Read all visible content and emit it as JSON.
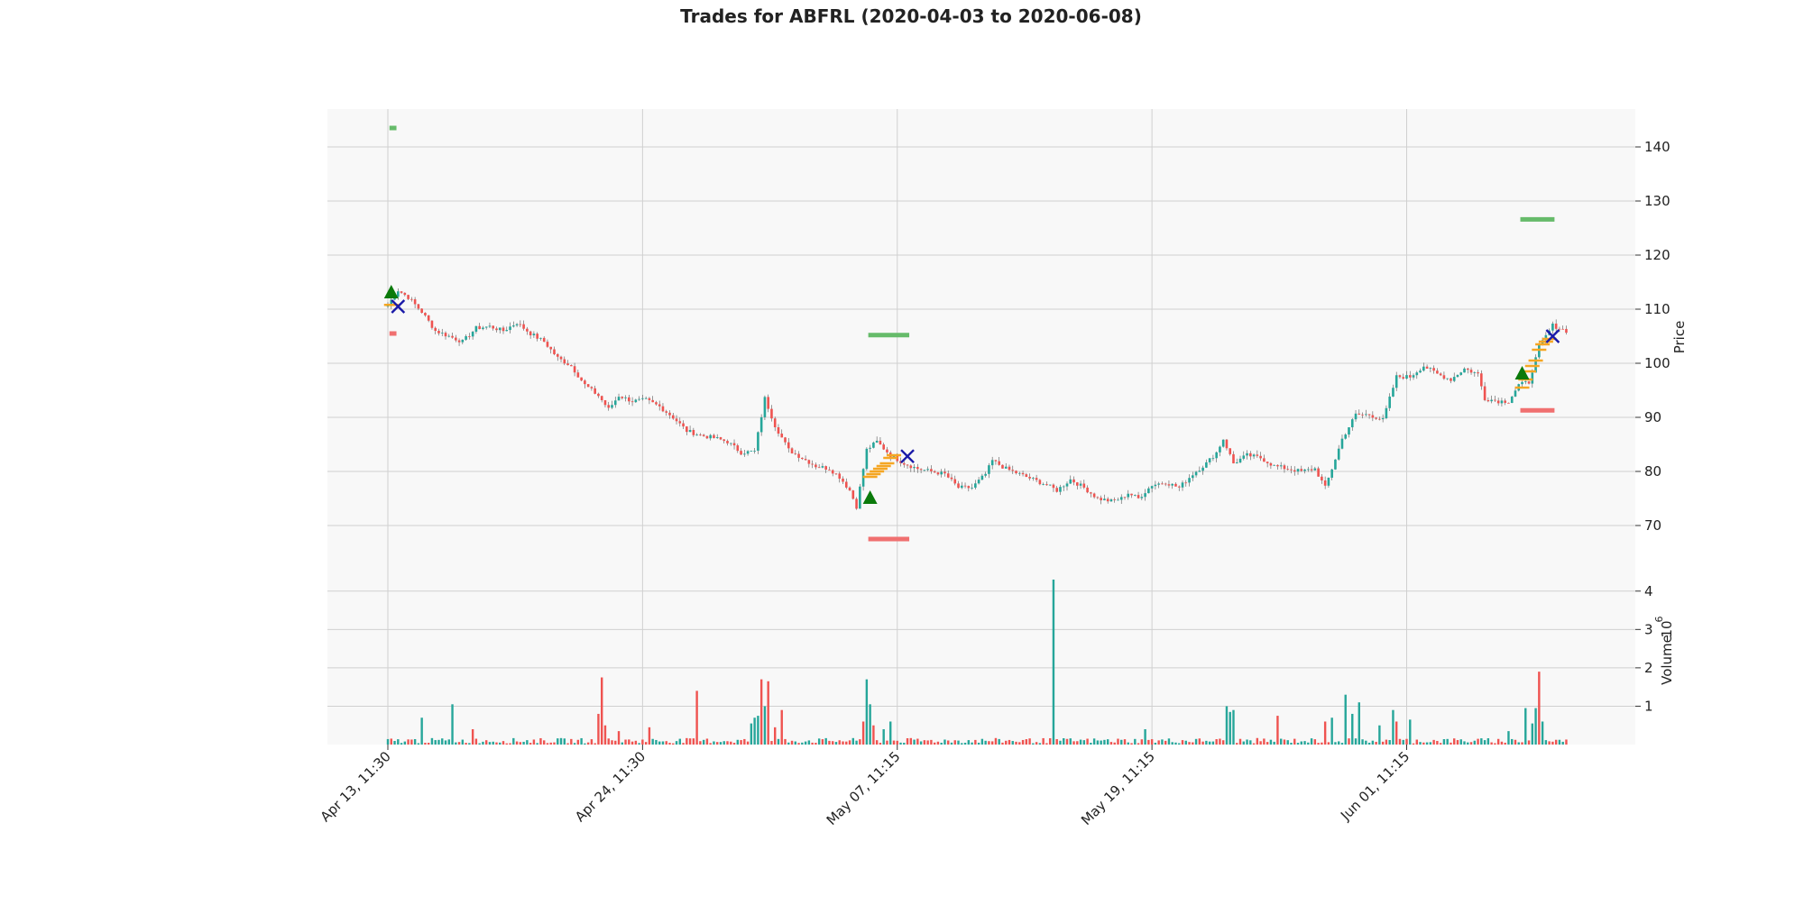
{
  "chart_data": {
    "type": "candlestick",
    "title": "Trades for ABFRL (2020-04-03 to 2020-06-08)",
    "price_panel": {
      "ylabel": "Price",
      "ylim": [
        63,
        147
      ],
      "yticks": [
        70,
        80,
        90,
        100,
        110,
        120,
        130,
        140
      ],
      "close_path": [
        [
          0,
          110.8
        ],
        [
          3,
          113.5
        ],
        [
          6,
          112.2
        ],
        [
          10,
          109.5
        ],
        [
          14,
          106.0
        ],
        [
          18,
          105.0
        ],
        [
          22,
          104.0
        ],
        [
          26,
          106.5
        ],
        [
          30,
          106.8
        ],
        [
          34,
          106.0
        ],
        [
          38,
          107.5
        ],
        [
          42,
          105.5
        ],
        [
          46,
          104.0
        ],
        [
          50,
          101.0
        ],
        [
          54,
          99.5
        ],
        [
          58,
          96.0
        ],
        [
          62,
          94.0
        ],
        [
          65,
          91.5
        ],
        [
          68,
          94.0
        ],
        [
          72,
          93.0
        ],
        [
          76,
          93.2
        ],
        [
          80,
          92.0
        ],
        [
          84,
          90.0
        ],
        [
          88,
          87.5
        ],
        [
          92,
          86.7
        ],
        [
          96,
          86.2
        ],
        [
          100,
          85.5
        ],
        [
          104,
          83.5
        ],
        [
          108,
          83.7
        ],
        [
          111,
          93.5
        ],
        [
          114,
          88.5
        ],
        [
          118,
          84.0
        ],
        [
          122,
          82.5
        ],
        [
          126,
          81.0
        ],
        [
          130,
          80.5
        ],
        [
          133,
          79.0
        ],
        [
          136,
          76.5
        ],
        [
          138,
          73.5
        ],
        [
          141,
          84.0
        ],
        [
          144,
          85.5
        ],
        [
          148,
          83.0
        ],
        [
          152,
          81.5
        ],
        [
          156,
          80.5
        ],
        [
          160,
          80.0
        ],
        [
          164,
          79.5
        ],
        [
          168,
          77.0
        ],
        [
          172,
          77.0
        ],
        [
          176,
          79.5
        ],
        [
          178,
          82.0
        ],
        [
          182,
          80.5
        ],
        [
          186,
          79.5
        ],
        [
          190,
          78.5
        ],
        [
          194,
          77.5
        ],
        [
          197,
          76.5
        ],
        [
          201,
          78.5
        ],
        [
          205,
          77.0
        ],
        [
          209,
          75.0
        ],
        [
          213,
          74.5
        ],
        [
          216,
          75.0
        ],
        [
          218,
          76.0
        ],
        [
          221,
          75.0
        ],
        [
          225,
          77.5
        ],
        [
          229,
          78.0
        ],
        [
          233,
          77.0
        ],
        [
          237,
          79.5
        ],
        [
          241,
          81.5
        ],
        [
          244,
          83.5
        ],
        [
          246,
          86.0
        ],
        [
          249,
          81.5
        ],
        [
          253,
          83.0
        ],
        [
          257,
          82.5
        ],
        [
          261,
          81.0
        ],
        [
          265,
          80.5
        ],
        [
          269,
          80.0
        ],
        [
          273,
          80.5
        ],
        [
          276,
          77.0
        ],
        [
          278,
          80.5
        ],
        [
          281,
          86.0
        ],
        [
          285,
          90.5
        ],
        [
          289,
          90.5
        ],
        [
          293,
          89.5
        ],
        [
          295,
          93.5
        ],
        [
          297,
          97.5
        ],
        [
          301,
          97.5
        ],
        [
          305,
          99.5
        ],
        [
          309,
          98.0
        ],
        [
          313,
          97.0
        ],
        [
          317,
          99.0
        ],
        [
          321,
          98.0
        ],
        [
          323,
          93.5
        ],
        [
          327,
          93.0
        ],
        [
          330,
          93.0
        ],
        [
          333,
          96.0
        ],
        [
          336,
          96.5
        ],
        [
          339,
          103.0
        ],
        [
          343,
          107.0
        ],
        [
          347,
          106.0
        ]
      ],
      "trade_markers": [
        {
          "kind": "buy",
          "x": 1,
          "y": 113.0
        },
        {
          "kind": "exit",
          "x": 3,
          "y": 110.5
        },
        {
          "kind": "buy",
          "x": 142,
          "y": 75.0
        },
        {
          "kind": "exit",
          "x": 153,
          "y": 82.8
        },
        {
          "kind": "buy",
          "x": 334,
          "y": 98.0
        },
        {
          "kind": "exit",
          "x": 343,
          "y": 105.0
        }
      ],
      "levels": [
        {
          "kind": "target",
          "x0": 1,
          "x1": 2,
          "y": 143.5
        },
        {
          "kind": "stop",
          "x0": 1,
          "x1": 2,
          "y": 105.5
        },
        {
          "kind": "target",
          "x0": 142,
          "x1": 153,
          "y": 105.2
        },
        {
          "kind": "stop",
          "x0": 142,
          "x1": 153,
          "y": 67.5
        },
        {
          "kind": "target",
          "x0": 334,
          "x1": 343,
          "y": 126.6
        },
        {
          "kind": "stop",
          "x0": 334,
          "x1": 343,
          "y": 91.3
        }
      ],
      "entry_orders": [
        {
          "x": 1,
          "y": 110.8
        },
        {
          "x": 142,
          "y": 79.0
        },
        {
          "x": 143,
          "y": 79.5
        },
        {
          "x": 144,
          "y": 80.0
        },
        {
          "x": 145,
          "y": 80.5
        },
        {
          "x": 146,
          "y": 81.0
        },
        {
          "x": 147,
          "y": 81.5
        },
        {
          "x": 148,
          "y": 82.5
        },
        {
          "x": 149,
          "y": 83.0
        },
        {
          "x": 334,
          "y": 95.5
        },
        {
          "x": 335,
          "y": 97.0
        },
        {
          "x": 336,
          "y": 98.5
        },
        {
          "x": 337,
          "y": 99.5
        },
        {
          "x": 338,
          "y": 100.5
        },
        {
          "x": 339,
          "y": 102.5
        },
        {
          "x": 340,
          "y": 103.5
        },
        {
          "x": 341,
          "y": 104.0
        },
        {
          "x": 342,
          "y": 104.5
        }
      ]
    },
    "volume_panel": {
      "ylabel": "Volume",
      "multiplier": "10",
      "multiplier_exp": "6",
      "ylim": [
        0,
        4.3
      ],
      "yticks": [
        1,
        2,
        3,
        4
      ],
      "spikes": [
        {
          "x": 10,
          "v": 0.7,
          "up": true
        },
        {
          "x": 19,
          "v": 1.05,
          "up": true
        },
        {
          "x": 25,
          "v": 0.4,
          "up": false
        },
        {
          "x": 62,
          "v": 0.8,
          "up": false
        },
        {
          "x": 63,
          "v": 1.75,
          "up": false
        },
        {
          "x": 64,
          "v": 0.5,
          "up": false
        },
        {
          "x": 68,
          "v": 0.35,
          "up": false
        },
        {
          "x": 77,
          "v": 0.45,
          "up": false
        },
        {
          "x": 91,
          "v": 1.4,
          "up": false
        },
        {
          "x": 107,
          "v": 0.55,
          "up": true
        },
        {
          "x": 108,
          "v": 0.7,
          "up": true
        },
        {
          "x": 109,
          "v": 0.75,
          "up": true
        },
        {
          "x": 110,
          "v": 1.7,
          "up": false
        },
        {
          "x": 111,
          "v": 1.0,
          "up": true
        },
        {
          "x": 112,
          "v": 1.65,
          "up": false
        },
        {
          "x": 114,
          "v": 0.45,
          "up": false
        },
        {
          "x": 116,
          "v": 0.9,
          "up": false
        },
        {
          "x": 140,
          "v": 0.6,
          "up": false
        },
        {
          "x": 141,
          "v": 1.7,
          "up": true
        },
        {
          "x": 142,
          "v": 1.05,
          "up": true
        },
        {
          "x": 143,
          "v": 0.5,
          "up": false
        },
        {
          "x": 146,
          "v": 0.4,
          "up": true
        },
        {
          "x": 148,
          "v": 0.6,
          "up": true
        },
        {
          "x": 196,
          "v": 4.3,
          "up": true
        },
        {
          "x": 223,
          "v": 0.4,
          "up": true
        },
        {
          "x": 247,
          "v": 1.0,
          "up": true
        },
        {
          "x": 248,
          "v": 0.85,
          "up": true
        },
        {
          "x": 249,
          "v": 0.9,
          "up": true
        },
        {
          "x": 262,
          "v": 0.75,
          "up": false
        },
        {
          "x": 276,
          "v": 0.6,
          "up": false
        },
        {
          "x": 278,
          "v": 0.7,
          "up": true
        },
        {
          "x": 282,
          "v": 1.3,
          "up": true
        },
        {
          "x": 284,
          "v": 0.8,
          "up": true
        },
        {
          "x": 286,
          "v": 1.1,
          "up": true
        },
        {
          "x": 292,
          "v": 0.5,
          "up": true
        },
        {
          "x": 296,
          "v": 0.9,
          "up": true
        },
        {
          "x": 297,
          "v": 0.6,
          "up": false
        },
        {
          "x": 301,
          "v": 0.65,
          "up": true
        },
        {
          "x": 330,
          "v": 0.35,
          "up": true
        },
        {
          "x": 335,
          "v": 0.95,
          "up": true
        },
        {
          "x": 337,
          "v": 0.55,
          "up": true
        },
        {
          "x": 338,
          "v": 0.95,
          "up": true
        },
        {
          "x": 339,
          "v": 1.9,
          "up": false
        },
        {
          "x": 340,
          "v": 0.6,
          "up": true
        }
      ]
    },
    "x_axis": {
      "n_bars": 348,
      "ticks": [
        {
          "x": 0,
          "label": "Apr 13, 11:30"
        },
        {
          "x": 75,
          "label": "Apr 24, 11:30"
        },
        {
          "x": 150,
          "label": "May 07, 11:15"
        },
        {
          "x": 225,
          "label": "May 19, 11:15"
        },
        {
          "x": 300,
          "label": "Jun 01, 11:15"
        }
      ]
    },
    "grid": true,
    "colors": {
      "up": "#26a69a",
      "down": "#ef5350",
      "buy_marker": "#0b7a0b",
      "exit_marker": "#1a1aa8",
      "target_level": "#66bb6a",
      "stop_level": "#f07070",
      "entry_order": "#f5a623",
      "panel_bg": "#f8f8f8",
      "grid": "#d0d0d0"
    }
  }
}
